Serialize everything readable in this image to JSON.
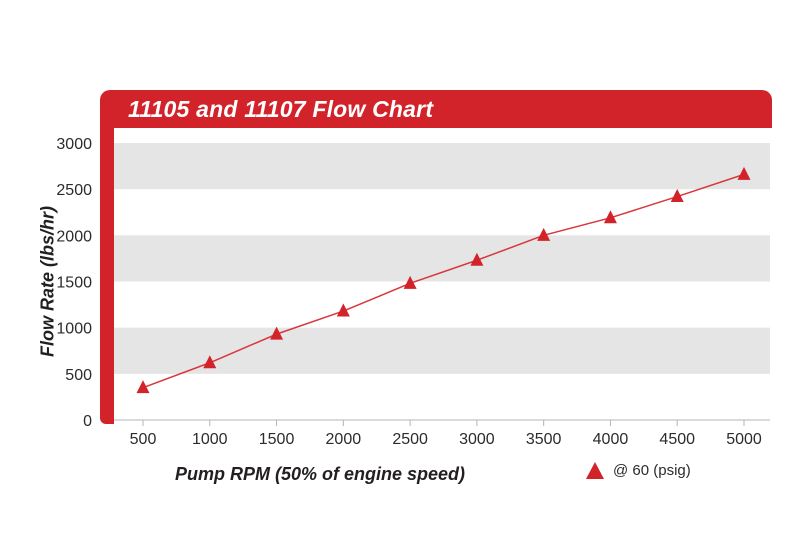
{
  "chart_data": {
    "type": "line",
    "title": "11105 and 11107 Flow Chart",
    "xlabel": "Pump RPM (50% of engine speed)",
    "ylabel": "Flow Rate (lbs/hr)",
    "x": [
      500,
      1000,
      1500,
      2000,
      2500,
      3000,
      3500,
      4000,
      4500,
      5000
    ],
    "series": [
      {
        "name": "@ 60 (psig)",
        "marker": "triangle",
        "values": [
          350,
          620,
          930,
          1180,
          1480,
          1730,
          2000,
          2190,
          2420,
          2660
        ]
      }
    ],
    "xticks": [
      500,
      1000,
      1500,
      2000,
      2500,
      3000,
      3500,
      4000,
      4500,
      5000
    ],
    "yticks": [
      0,
      500,
      1000,
      1500,
      2000,
      2500,
      3000
    ],
    "xlim": [
      500,
      5000
    ],
    "ylim": [
      0,
      3000
    ],
    "grid": "horizontal-bands",
    "legend_position": "bottom-right",
    "colors": {
      "accent_red": "#d2232a",
      "line_red": "#d9363c",
      "band_gray": "#e5e5e6",
      "text_dark": "#2b2b2b",
      "axis_gray": "#b4b4b4"
    }
  }
}
